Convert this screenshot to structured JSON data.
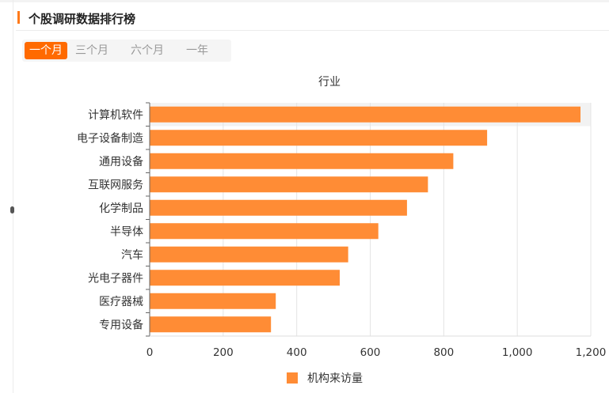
{
  "header": {
    "title": "个股调研数据排行榜"
  },
  "tabs": [
    {
      "label": "一个月",
      "active": true
    },
    {
      "label": "三个月",
      "active": false
    },
    {
      "label": "六个月",
      "active": false
    },
    {
      "label": "一年",
      "active": false
    }
  ],
  "colors": {
    "accent": "#ff6a00",
    "bar": "#ff8c35",
    "highlight_band": "#f2f2f2"
  },
  "chart_data": {
    "type": "bar",
    "orientation": "horizontal",
    "title": "行业",
    "categories": [
      "计算机软件",
      "电子设备制造",
      "通用设备",
      "互联网服务",
      "化学制品",
      "半导体",
      "汽车",
      "光电子器件",
      "医疗器械",
      "专用设备"
    ],
    "series": [
      {
        "name": "机构来访量",
        "values": [
          1172,
          918,
          826,
          757,
          700,
          622,
          540,
          517,
          343,
          330
        ]
      }
    ],
    "xlim": [
      0,
      1200
    ],
    "xticks": [
      0,
      200,
      400,
      600,
      800,
      1000,
      1200
    ],
    "xtick_labels": [
      "0",
      "200",
      "400",
      "600",
      "800",
      "1,000",
      "1,200"
    ],
    "grid": true,
    "legend": "bottom-center",
    "highlighted_category": "计算机软件"
  }
}
